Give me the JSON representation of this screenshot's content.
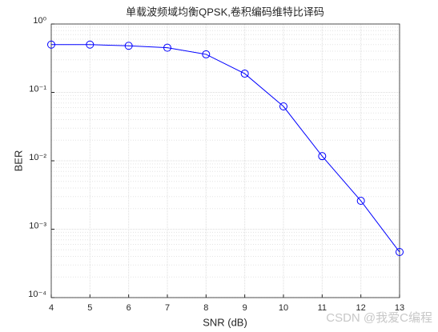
{
  "chart_data": {
    "type": "line",
    "title": "单载波频域均衡QPSK,卷积编码维特比译码",
    "xlabel": "SNR (dB)",
    "ylabel": "BER",
    "x": [
      4,
      5,
      6,
      7,
      8,
      9,
      10,
      11,
      12,
      13
    ],
    "series": [
      {
        "name": "BER",
        "color": "#0000ff",
        "values": [
          0.5,
          0.5,
          0.48,
          0.45,
          0.36,
          0.188,
          0.0624,
          0.0117,
          0.0026,
          0.000464
        ]
      }
    ],
    "xlim": [
      4,
      13
    ],
    "xticks": [
      4,
      5,
      6,
      7,
      8,
      9,
      10,
      11,
      12,
      13
    ],
    "ylim": [
      0.0001,
      1
    ],
    "yticks": [
      {
        "value": 0.0001,
        "label": "10⁻⁴"
      },
      {
        "value": 0.001,
        "label": "10⁻³"
      },
      {
        "value": 0.01,
        "label": "10⁻²"
      },
      {
        "value": 0.1,
        "label": "10⁻¹"
      },
      {
        "value": 1,
        "label": "10⁰"
      }
    ],
    "yscale": "log",
    "grid": true,
    "marker": "circle",
    "annotation": "CSDN @我爱C编程"
  }
}
